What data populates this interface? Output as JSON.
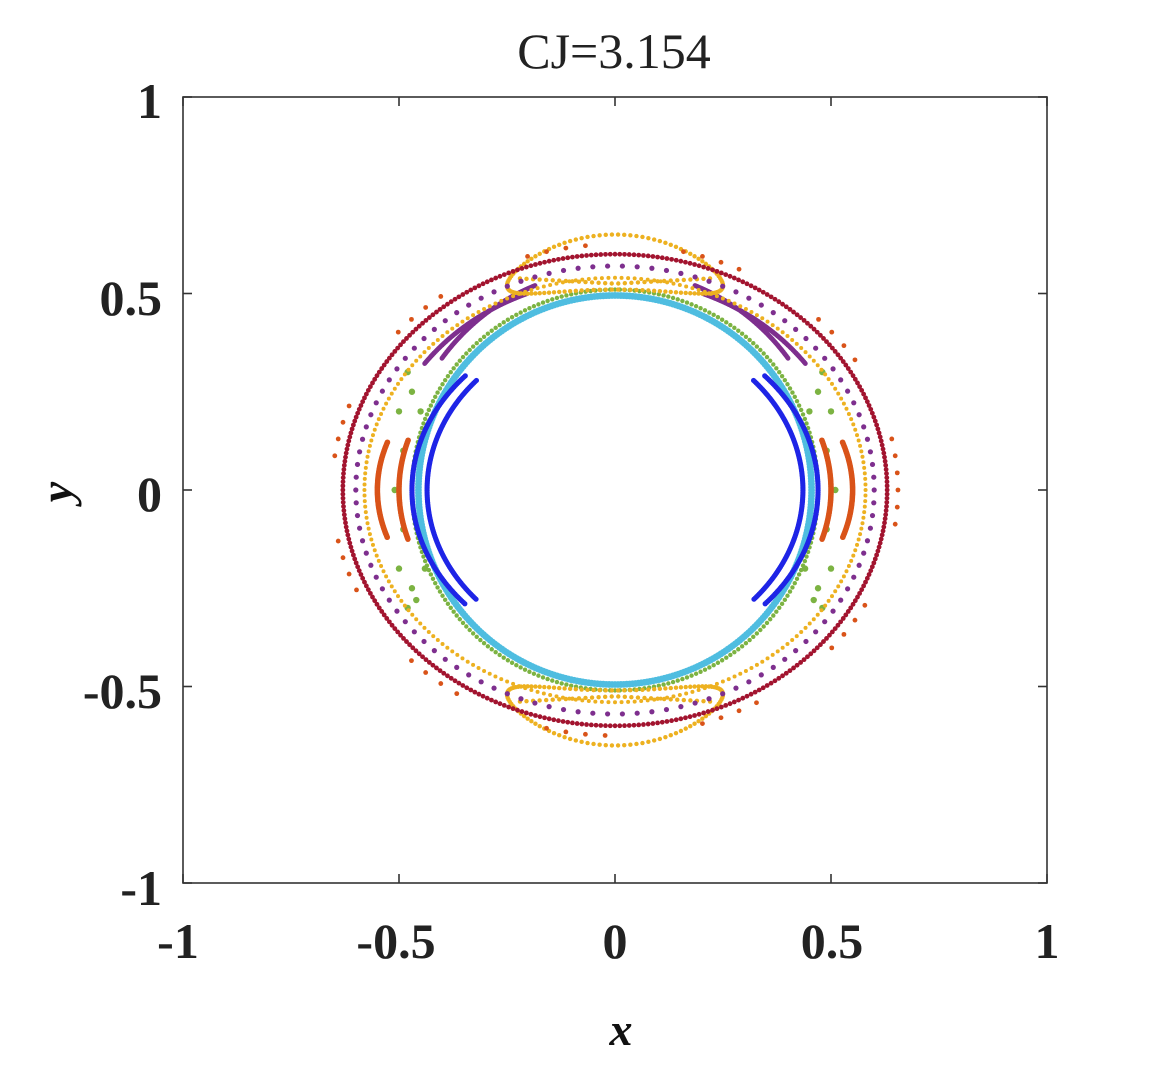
{
  "chart_data": {
    "type": "scatter",
    "title": "CJ=3.154",
    "xlabel": "x",
    "ylabel": "y",
    "xlim": [
      -1,
      1
    ],
    "ylim": [
      -1,
      1
    ],
    "xticks": [
      -1,
      -0.5,
      0,
      0.5,
      1
    ],
    "yticks": [
      -1,
      -0.5,
      0,
      0.5,
      1
    ],
    "xtick_labels": [
      "-1",
      "-0.5",
      "0",
      "0.5",
      "1"
    ],
    "ytick_labels": [
      "-1",
      "-0.5",
      "0",
      "0.5",
      "1"
    ],
    "grid": false,
    "legend": "none",
    "series": [
      {
        "color": "#4fbde0",
        "shape": "ellipse",
        "cx": 0,
        "cy": 0,
        "rx": 0.455,
        "ry": 0.495,
        "points": 420,
        "dot_r": 3.4
      },
      {
        "color": "#7cb342",
        "shape": "ellipse",
        "cx": 0,
        "cy": 0,
        "rx": 0.47,
        "ry": 0.51,
        "points": 260,
        "dot_r": 2.2
      },
      {
        "color": "#7cb342",
        "shape": "scatter",
        "points": [
          [
            -0.48,
            0.3
          ],
          [
            -0.47,
            0.25
          ],
          [
            -0.5,
            0.2
          ],
          [
            -0.49,
            0.1
          ],
          [
            -0.51,
            0.0
          ],
          [
            -0.49,
            -0.1
          ],
          [
            -0.5,
            -0.2
          ],
          [
            -0.47,
            -0.25
          ],
          [
            -0.48,
            -0.3
          ],
          [
            -0.46,
            -0.28
          ],
          [
            0.48,
            0.3
          ],
          [
            0.47,
            0.25
          ],
          [
            0.5,
            0.2
          ],
          [
            0.49,
            0.1
          ],
          [
            0.51,
            0.0
          ],
          [
            0.49,
            -0.1
          ],
          [
            0.5,
            -0.2
          ],
          [
            0.47,
            -0.25
          ],
          [
            0.48,
            -0.3
          ],
          [
            0.46,
            -0.28
          ],
          [
            -0.45,
            0.2
          ],
          [
            -0.44,
            -0.2
          ],
          [
            0.45,
            0.2
          ],
          [
            0.44,
            -0.2
          ]
        ],
        "dot_r": 3.2
      },
      {
        "color": "#1e24e6",
        "shape": "crescents",
        "cx": 0.43,
        "cy": 0,
        "rx_in": 0.47,
        "rx_out": 0.435,
        "ry": 0.43,
        "span": [
          2.4,
          3.88
        ],
        "points": 140,
        "dot_r": 2.6
      },
      {
        "color": "#d95319",
        "shape": "crescents",
        "cx": 0,
        "cy": 0,
        "rx_in": 0.5,
        "rx_out": 0.55,
        "ry": 0.44,
        "span": [
          2.85,
          3.43
        ],
        "points": 70,
        "dot_r": 2.8
      },
      {
        "color": "#7e2f8e",
        "shape": "crescents",
        "cx": 0,
        "cy": 0,
        "rx_in": 0.5,
        "rx_out": 0.55,
        "ry": 0.56,
        "span": [
          1.95,
          2.5
        ],
        "points": 120,
        "dot_r": 2.4
      },
      {
        "color": "#edb120",
        "shape": "lobes",
        "cx": 0,
        "cy": 0.58,
        "rx": 0.25,
        "ry": 0.07,
        "points": 110,
        "dot_r": 2.2
      },
      {
        "color": "#edb120",
        "shape": "ellipse",
        "cx": 0,
        "cy": 0,
        "rx": 0.58,
        "ry": 0.54,
        "points": 240,
        "dot_r": 2.0
      },
      {
        "color": "#7e2f8e",
        "shape": "ellipse",
        "cx": 0,
        "cy": 0,
        "rx": 0.6,
        "ry": 0.57,
        "points": 110,
        "dot_r": 2.6
      },
      {
        "color": "#a2142f",
        "shape": "ellipse",
        "cx": 0,
        "cy": 0,
        "rx": 0.63,
        "ry": 0.6,
        "points": 360,
        "dot_r": 2.4
      },
      {
        "color": "#d95319",
        "shape": "dashes",
        "cx": 0,
        "cy": 0,
        "rx": 0.655,
        "ry": 0.625,
        "points": 90,
        "dot_r": 2.4
      }
    ]
  }
}
